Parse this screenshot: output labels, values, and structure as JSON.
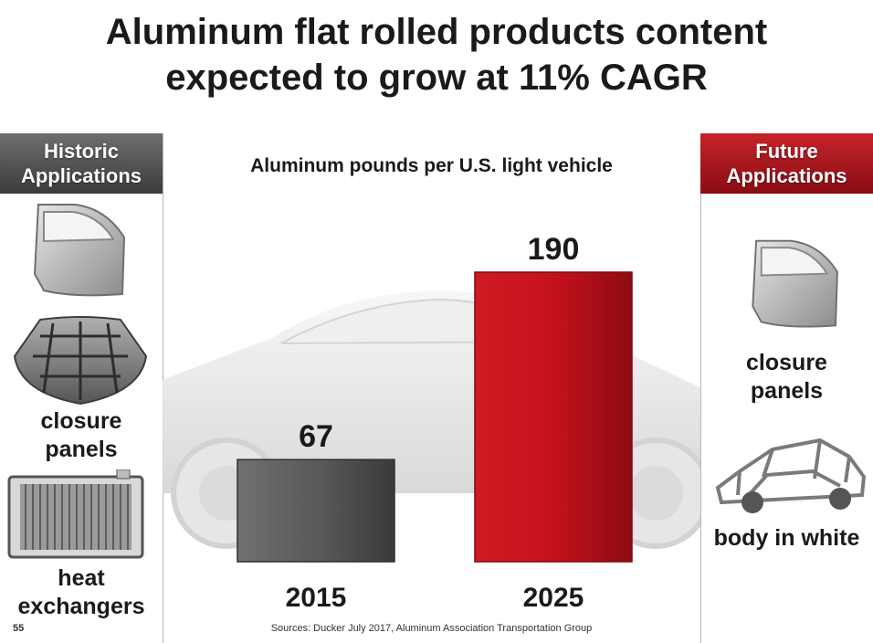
{
  "title": {
    "line1": "Aluminum flat rolled products content",
    "line2": "expected to grow at 11% CAGR"
  },
  "historic": {
    "header_line1": "Historic",
    "header_line2": "Applications",
    "label1_line1": "closure",
    "label1_line2": "panels",
    "label2_line1": "heat",
    "label2_line2": "exchangers"
  },
  "future": {
    "header_line1": "Future",
    "header_line2": "Applications",
    "label1_line1": "closure",
    "label1_line2": "panels",
    "label2": "body in white"
  },
  "colors": {
    "bar_2015": "#555555",
    "bar_2025": "#c4121c",
    "historic_header": "#4a4a4a",
    "future_header": "#a5121a"
  },
  "chart_data": {
    "type": "bar",
    "title": "Aluminum pounds per U.S. light vehicle",
    "categories": [
      "2015",
      "2025"
    ],
    "values": [
      67,
      190
    ],
    "ylim": [
      0,
      190
    ],
    "grid": false
  },
  "footer": {
    "page_number": "55",
    "source": "Sources: Ducker July 2017, Aluminum Association Transportation Group"
  }
}
